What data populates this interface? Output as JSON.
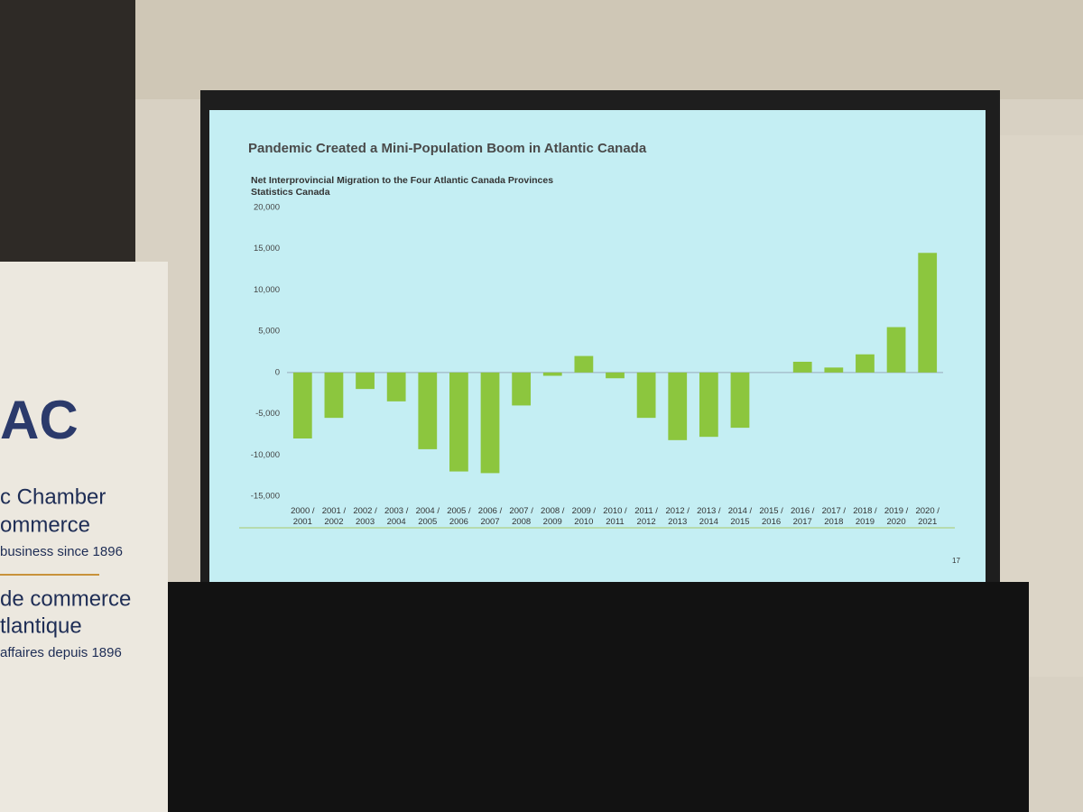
{
  "chart_data": {
    "type": "bar",
    "title": "Pandemic Created a Mini-Population Boom in Atlantic Canada",
    "subtitle": "Net Interprovincial Migration to the Four Atlantic Canada Provinces",
    "source": "Statistics Canada",
    "categories": [
      "2000 / 2001",
      "2001 / 2002",
      "2002 / 2003",
      "2003 / 2004",
      "2004 / 2005",
      "2005 / 2006",
      "2006 / 2007",
      "2007 / 2008",
      "2008 / 2009",
      "2009 / 2010",
      "2010 / 2011",
      "2011 / 2012",
      "2012 / 2013",
      "2013 / 2014",
      "2014 / 2015",
      "2015 / 2016",
      "2016 / 2017",
      "2017 / 2018",
      "2018 / 2019",
      "2019 / 2020",
      "2020 / 2021"
    ],
    "values": [
      -8000,
      -5500,
      -2000,
      -3500,
      -9300,
      -12000,
      -12200,
      -4000,
      -400,
      2000,
      -700,
      -5500,
      -8200,
      -7800,
      -6700,
      0,
      1300,
      600,
      2200,
      5500,
      14500
    ],
    "color": "#8cc63e",
    "ylim": [
      -15000,
      20000
    ],
    "yticks": [
      {
        "value": -15000,
        "label": "-15,000"
      },
      {
        "value": -10000,
        "label": "-10,000"
      },
      {
        "value": -5000,
        "label": "-5,000"
      },
      0,
      {
        "value": 5000,
        "label": "5,000"
      },
      {
        "value": 10000,
        "label": "10,000"
      },
      {
        "value": 15000,
        "label": "15,000"
      },
      {
        "value": 20000,
        "label": "20,000"
      }
    ],
    "grid": false
  },
  "slide_number": "17",
  "banner": {
    "lines": [
      "c Chamber",
      "ommerce",
      "business since 1896",
      "de commerce",
      "tlantique",
      "affaires depuis 1896"
    ]
  }
}
